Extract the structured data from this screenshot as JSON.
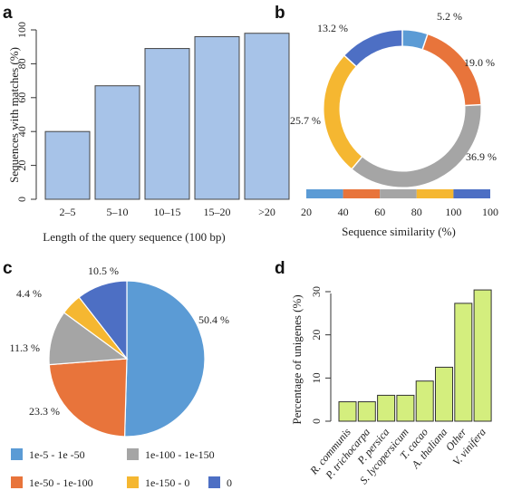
{
  "panels": {
    "a": "a",
    "b": "b",
    "c": "c",
    "d": "d"
  },
  "chart_data": [
    {
      "panel": "a",
      "type": "bar",
      "categories": [
        "2–5",
        "5–10",
        "10–15",
        "15–20",
        ">20"
      ],
      "values": [
        40,
        67,
        89,
        96,
        98
      ],
      "xlabel": "Length of the query sequence (100 bp)",
      "ylabel": "Sequences with matches (%)",
      "ylim": [
        0,
        100
      ],
      "yticks": [
        "0",
        "20",
        "40",
        "60",
        "80",
        "100"
      ],
      "color": "#a7c3e8"
    },
    {
      "panel": "b",
      "type": "pie",
      "style": "donut",
      "labels": [
        "20–40",
        "40–60",
        "60–80",
        "80–100",
        "100"
      ],
      "values": [
        5.2,
        19.0,
        36.9,
        25.7,
        13.2
      ],
      "value_labels": [
        "5.2 %",
        "19.0 %",
        "36.9 %",
        "25.7 %",
        "13.2 %"
      ],
      "colors": [
        "#5b9bd5",
        "#e8743b",
        "#a5a5a5",
        "#f5b731",
        "#4d6fc4"
      ],
      "scale_ticks": [
        "20",
        "40",
        "60",
        "80",
        "100",
        "100"
      ],
      "xlabel": "Sequence similarity (%)"
    },
    {
      "panel": "c",
      "type": "pie",
      "values": [
        50.4,
        23.3,
        11.3,
        4.4,
        10.5
      ],
      "value_labels": [
        "50.4 %",
        "23.3 %",
        "11.3 %",
        "4.4 %",
        "10.5 %"
      ],
      "colors": [
        "#5b9bd5",
        "#e8743b",
        "#a5a5a5",
        "#f5b731",
        "#4d6fc4"
      ],
      "legend": [
        {
          "label": "1e-5 - 1e -50",
          "color": "#5b9bd5"
        },
        {
          "label": "1e-100 - 1e-150",
          "color": "#a5a5a5"
        },
        {
          "label": "1e-50 - 1e-100",
          "color": "#e8743b"
        },
        {
          "label": "1e-150 - 0",
          "color": "#f5b731"
        },
        {
          "label": "0",
          "color": "#4d6fc4"
        }
      ]
    },
    {
      "panel": "d",
      "type": "bar",
      "categories": [
        "R. communis",
        "P. trichocarpa",
        "P. persica",
        "S. lycopersicum",
        "T. cacao",
        "A. thaliana",
        "Other",
        "V. vinifera"
      ],
      "values": [
        4.5,
        4.5,
        6,
        6,
        9.3,
        12.5,
        27.3,
        30.4
      ],
      "ylabel": "Percentage of unigenes (%)",
      "ylim": [
        0,
        30
      ],
      "yticks": [
        "0",
        "10",
        "20",
        "30"
      ],
      "color": "#d4ee7e"
    }
  ]
}
